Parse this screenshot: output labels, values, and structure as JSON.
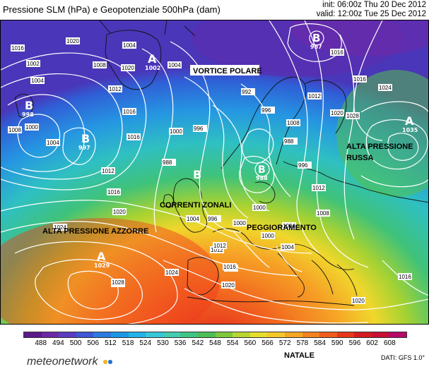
{
  "header": {
    "title": "Pressione SLM (hPa) e Geopotenziale 500hPa (dam)",
    "init": "init: 06:00z Thu 20 Dec 2012",
    "valid": "valid: 12:00z Tue 25 Dec 2012"
  },
  "centers": [
    {
      "letter": "A",
      "value": "1002"
    },
    {
      "letter": "B",
      "value": "987"
    },
    {
      "letter": "B",
      "value": "998"
    },
    {
      "letter": "B",
      "value": "997"
    },
    {
      "letter": "B",
      "value": "988"
    },
    {
      "letter": "B",
      "value": ""
    },
    {
      "letter": "A",
      "value": "1035"
    },
    {
      "letter": "A",
      "value": "1029"
    }
  ],
  "annotations": {
    "vortice": "VORTICE POLARE",
    "russa_1": "ALTA PRESSIONE",
    "russa_2": "RUSSA",
    "correnti": "CORRENTI ZONALI",
    "peggioramento": "PEGGIORAMENTO",
    "azzorre": "ALTA PRESSIONE AZZORRE"
  },
  "isobar_labels": [
    "1016",
    "1020",
    "1004",
    "1002",
    "1004",
    "1008",
    "1020",
    "1004",
    "1012",
    "1016",
    "1016",
    "1012",
    "1008",
    "1004",
    "1000",
    "996",
    "992",
    "988",
    "1000",
    "996",
    "1008",
    "1012",
    "1016",
    "1020",
    "1016",
    "1024",
    "1028",
    "1012",
    "1016",
    "1020",
    "1024",
    "1028",
    "1016",
    "1012",
    "1004",
    "1000",
    "1004",
    "996",
    "1012",
    "1016",
    "1020",
    "1028",
    "1024",
    "1020",
    "1016",
    "1008",
    "1004",
    "1000",
    "996",
    "988",
    "1000"
  ],
  "colorbar": {
    "labels": [
      "488",
      "494",
      "500",
      "506",
      "512",
      "518",
      "524",
      "530",
      "536",
      "542",
      "548",
      "554",
      "560",
      "566",
      "572",
      "578",
      "584",
      "590",
      "596",
      "602",
      "608"
    ],
    "colors": [
      "#5b1a8a",
      "#6a2aa6",
      "#5a3cc0",
      "#3d57d6",
      "#2a7ae0",
      "#1c97e6",
      "#22b3e8",
      "#38c6d8",
      "#44cbb0",
      "#3fc485",
      "#4cbe55",
      "#7ec93a",
      "#b9d630",
      "#e7de2c",
      "#f5c82a",
      "#f5a624",
      "#f38220",
      "#ef5c1c",
      "#e5381a",
      "#d41b1f",
      "#c80f34",
      "#b8086a"
    ]
  },
  "footer": {
    "note": "NATALE",
    "source": "DATI: GFS 1.0°",
    "logo": "meteonetwork"
  },
  "colors": {
    "logo_dot_1": "#f4b41a",
    "logo_dot_2": "#1f6fd1"
  }
}
